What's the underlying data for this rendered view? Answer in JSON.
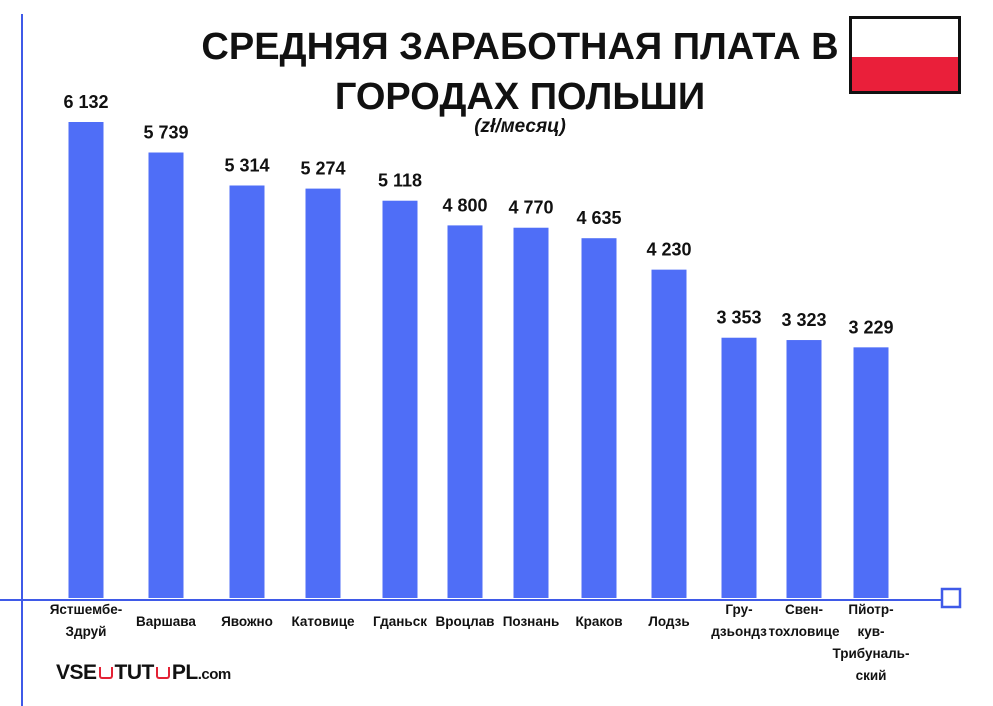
{
  "title_lines": [
    "СРЕДНЯЯ ЗАРАБОТНАЯ ПЛАТА В",
    "ГОРОДАХ ПОЛЬШИ"
  ],
  "unit": "(zł/месяц)",
  "flag": {
    "top_color": "#ffffff",
    "bottom_color": "#ea1f3a"
  },
  "logo": {
    "part1": "VSE",
    "part2": "TUT",
    "part3": "PL",
    "part4": ".com"
  },
  "colors": {
    "bar": "#4f6ef7",
    "axis": "#3f5ae8"
  },
  "chart_data": {
    "type": "bar",
    "title": "СРЕДНЯЯ ЗАРАБОТНАЯ ПЛАТА В ГОРОДАХ ПОЛЬШИ",
    "subtitle": "(zł/месяц)",
    "categories": [
      "Ястшембе-Здруй",
      "Варшава",
      "Явожно",
      "Катовице",
      "Гданьск",
      "Вроцлав",
      "Познань",
      "Краков",
      "Лодзь",
      "Грудзьондз",
      "Свентохловице",
      "Пётркув-Трыбунальский"
    ],
    "category_lines": [
      [
        "Ястшембе-",
        "Здруй"
      ],
      [
        "Варшава"
      ],
      [
        "Явожно"
      ],
      [
        "Катовице"
      ],
      [
        "Гданьск"
      ],
      [
        "Вроцлав"
      ],
      [
        "Познань"
      ],
      [
        "Краков"
      ],
      [
        "Лодзь"
      ],
      [
        "Гру-",
        "дзьондз"
      ],
      [
        "Свен-",
        "тохловице"
      ],
      [
        "Пйотр-",
        "кув-",
        "Трибуналь-",
        "ский"
      ]
    ],
    "values": [
      6132,
      5739,
      5314,
      5274,
      5118,
      4800,
      4770,
      4635,
      4230,
      3353,
      3323,
      3229
    ],
    "value_labels": [
      "6 132",
      "5 739",
      "5 314",
      "5 274",
      "5 118",
      "4 800",
      "4 770",
      "4 635",
      "4 230",
      "3 353",
      "3 323",
      "3 229"
    ],
    "xlabel": "",
    "ylabel": "",
    "grid": false,
    "legend": "none"
  }
}
